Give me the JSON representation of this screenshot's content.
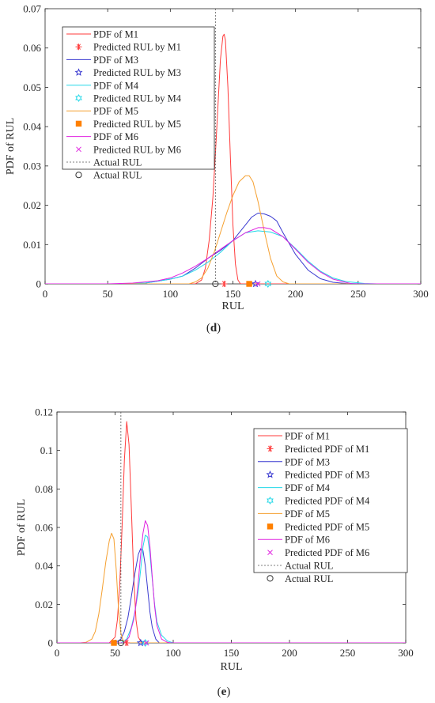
{
  "chart_data": [
    {
      "type": "line",
      "panel_label": "(d)",
      "xlabel": "RUL",
      "ylabel": "PDF of RUL",
      "xlim": [
        0,
        300
      ],
      "ylim": [
        0,
        0.07
      ],
      "xticks": [
        0,
        50,
        100,
        150,
        200,
        250,
        300
      ],
      "yticks": [
        0,
        0.01,
        0.02,
        0.03,
        0.04,
        0.05,
        0.06,
        0.07
      ],
      "ytick_labels": [
        "0",
        "0.01",
        "0.02",
        "0.03",
        "0.04",
        "0.05",
        "0.06",
        "0.07"
      ],
      "grid": false,
      "legend_position": "top-left",
      "actual_rul": 136,
      "series": [
        {
          "name": "PDF of M1",
          "color": "#ff3b3b",
          "kind": "line",
          "x": [
            120,
            125,
            128,
            131,
            134,
            136,
            138,
            140,
            142,
            143,
            144,
            146,
            148,
            150,
            152,
            154,
            156
          ],
          "y": [
            0,
            0.001,
            0.004,
            0.011,
            0.022,
            0.033,
            0.045,
            0.057,
            0.063,
            0.0635,
            0.062,
            0.05,
            0.032,
            0.015,
            0.005,
            0.001,
            0
          ]
        },
        {
          "name": "Predicted RUL by M1",
          "color": "#ff3b3b",
          "kind": "marker",
          "marker": "asterisk",
          "x": [
            143
          ],
          "y": [
            0
          ]
        },
        {
          "name": "PDF of M3",
          "color": "#3a3ad0",
          "kind": "line",
          "x": [
            60,
            80,
            100,
            110,
            120,
            130,
            140,
            150,
            155,
            160,
            165,
            170,
            175,
            180,
            185,
            190,
            200,
            210,
            220,
            230,
            240,
            255
          ],
          "y": [
            0,
            0.0002,
            0.0012,
            0.002,
            0.004,
            0.0065,
            0.0085,
            0.011,
            0.013,
            0.015,
            0.017,
            0.018,
            0.0178,
            0.0172,
            0.016,
            0.013,
            0.0075,
            0.0035,
            0.0013,
            0.0004,
            0.0001,
            0
          ]
        },
        {
          "name": "Predicted RUL by M3",
          "color": "#3a3ad0",
          "kind": "marker",
          "marker": "star",
          "x": [
            168
          ],
          "y": [
            0
          ]
        },
        {
          "name": "PDF of M4",
          "color": "#22d8e8",
          "kind": "line",
          "x": [
            60,
            80,
            100,
            110,
            120,
            130,
            140,
            150,
            160,
            170,
            180,
            190,
            200,
            210,
            220,
            230,
            240,
            255,
            265
          ],
          "y": [
            0,
            0.0002,
            0.0012,
            0.002,
            0.0035,
            0.0055,
            0.008,
            0.011,
            0.013,
            0.0135,
            0.0132,
            0.012,
            0.009,
            0.0058,
            0.0032,
            0.0015,
            0.0006,
            0.0001,
            0
          ]
        },
        {
          "name": "Predicted RUL by M4",
          "color": "#22d8e8",
          "kind": "marker",
          "marker": "hexagram",
          "x": [
            178
          ],
          "y": [
            0
          ]
        },
        {
          "name": "PDF of M5",
          "color": "#f5a030",
          "kind": "line",
          "x": [
            115,
            120,
            125,
            130,
            135,
            140,
            145,
            150,
            155,
            160,
            163,
            166,
            170,
            175,
            180,
            185,
            190,
            195
          ],
          "y": [
            0,
            0.0005,
            0.0015,
            0.004,
            0.008,
            0.013,
            0.018,
            0.0225,
            0.026,
            0.0275,
            0.0275,
            0.026,
            0.021,
            0.0135,
            0.0065,
            0.002,
            0.0005,
            0
          ]
        },
        {
          "name": "Predicted RUL by M5",
          "color": "#ff8000",
          "kind": "marker",
          "marker": "square",
          "x": [
            163
          ],
          "y": [
            0
          ]
        },
        {
          "name": "PDF of M6",
          "color": "#e020e0",
          "kind": "line",
          "x": [
            50,
            70,
            90,
            100,
            110,
            120,
            130,
            140,
            150,
            160,
            170,
            175,
            180,
            190,
            200,
            210,
            220,
            230,
            245
          ],
          "y": [
            0,
            0.0002,
            0.0008,
            0.0015,
            0.0028,
            0.0045,
            0.0065,
            0.0088,
            0.011,
            0.013,
            0.0143,
            0.0143,
            0.014,
            0.012,
            0.0088,
            0.0055,
            0.003,
            0.0012,
            0
          ]
        },
        {
          "name": "Predicted RUL by M6",
          "color": "#e020e0",
          "kind": "marker",
          "marker": "x",
          "x": [
            170
          ],
          "y": [
            0
          ]
        },
        {
          "name": "Actual RUL",
          "color": "#555555",
          "kind": "vline",
          "x": [
            136
          ]
        },
        {
          "name": "Actual RUL",
          "color": "#333333",
          "kind": "marker",
          "marker": "circle",
          "x": [
            136
          ],
          "y": [
            0
          ]
        }
      ]
    },
    {
      "type": "line",
      "panel_label": "(e)",
      "xlabel": "RUL",
      "ylabel": "PDF of RUL",
      "xlim": [
        0,
        300
      ],
      "ylim": [
        0,
        0.12
      ],
      "xticks": [
        0,
        50,
        100,
        150,
        200,
        250,
        300
      ],
      "yticks": [
        0,
        0.02,
        0.04,
        0.06,
        0.08,
        0.1,
        0.12
      ],
      "ytick_labels": [
        "0",
        "0.02",
        "0.04",
        "0.06",
        "0.08",
        "0.1",
        "0.12"
      ],
      "grid": false,
      "legend_position": "top-right",
      "actual_rul": 55,
      "series": [
        {
          "name": "PDF of M1",
          "color": "#ff3b3b",
          "kind": "line",
          "x": [
            45,
            50,
            52,
            54,
            56,
            58,
            60,
            62,
            64,
            66,
            68,
            70,
            73
          ],
          "y": [
            0,
            0.003,
            0.012,
            0.03,
            0.06,
            0.095,
            0.115,
            0.103,
            0.07,
            0.035,
            0.012,
            0.003,
            0
          ]
        },
        {
          "name": "Predicted PDF of M1",
          "color": "#ff3b3b",
          "kind": "marker",
          "marker": "asterisk",
          "x": [
            60
          ],
          "y": [
            0
          ]
        },
        {
          "name": "PDF of M3",
          "color": "#3a3ad0",
          "kind": "line",
          "x": [
            50,
            55,
            58,
            61,
            64,
            67,
            70,
            72,
            74,
            76,
            78,
            80,
            82,
            85,
            88
          ],
          "y": [
            0,
            0.002,
            0.006,
            0.013,
            0.024,
            0.036,
            0.046,
            0.049,
            0.048,
            0.04,
            0.028,
            0.016,
            0.008,
            0.002,
            0
          ]
        },
        {
          "name": "Predicted PDF of M3",
          "color": "#3a3ad0",
          "kind": "marker",
          "marker": "star",
          "x": [
            72
          ],
          "y": [
            0
          ]
        },
        {
          "name": "PDF of M4",
          "color": "#22d8e8",
          "kind": "line",
          "x": [
            55,
            60,
            64,
            67,
            70,
            72,
            74,
            76,
            78,
            80,
            82,
            84,
            86,
            90,
            95,
            100
          ],
          "y": [
            0,
            0.002,
            0.008,
            0.016,
            0.027,
            0.038,
            0.05,
            0.056,
            0.055,
            0.046,
            0.033,
            0.02,
            0.011,
            0.004,
            0.001,
            0
          ]
        },
        {
          "name": "Predicted PDF of M4",
          "color": "#22d8e8",
          "kind": "marker",
          "marker": "hexagram",
          "x": [
            76
          ],
          "y": [
            0
          ]
        },
        {
          "name": "PDF of M5",
          "color": "#f5a030",
          "kind": "line",
          "x": [
            20,
            25,
            30,
            33,
            36,
            39,
            42,
            45,
            47,
            49,
            51,
            53,
            55,
            57,
            60
          ],
          "y": [
            0,
            0.0003,
            0.002,
            0.006,
            0.015,
            0.028,
            0.042,
            0.053,
            0.057,
            0.054,
            0.038,
            0.017,
            0.005,
            0.001,
            0
          ]
        },
        {
          "name": "Predicted PDF of M5",
          "color": "#ff8000",
          "kind": "marker",
          "marker": "square",
          "x": [
            49
          ],
          "y": [
            0
          ]
        },
        {
          "name": "PDF of M6",
          "color": "#e020e0",
          "kind": "line",
          "x": [
            58,
            62,
            66,
            68,
            70,
            72,
            74,
            76,
            78,
            80,
            82,
            84,
            86,
            90,
            95,
            98
          ],
          "y": [
            0,
            0.003,
            0.012,
            0.02,
            0.032,
            0.046,
            0.057,
            0.0635,
            0.061,
            0.05,
            0.034,
            0.019,
            0.009,
            0.002,
            0.0003,
            0
          ]
        },
        {
          "name": "Predicted PDF of M6",
          "color": "#e020e0",
          "kind": "marker",
          "marker": "x",
          "x": [
            77
          ],
          "y": [
            0
          ]
        },
        {
          "name": "Actual RUL",
          "color": "#555555",
          "kind": "vline",
          "x": [
            55
          ]
        },
        {
          "name": "Actual RUL",
          "color": "#333333",
          "kind": "marker",
          "marker": "circle",
          "x": [
            55
          ],
          "y": [
            0
          ]
        }
      ]
    }
  ]
}
